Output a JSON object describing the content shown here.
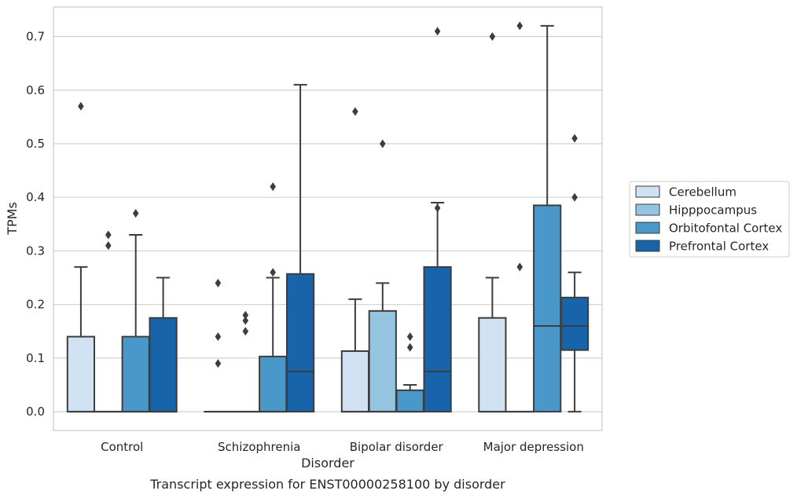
{
  "chart_data": {
    "type": "box",
    "caption": "Transcript expression for ENST00000258100 by disorder",
    "xlabel": "Disorder",
    "ylabel": "TPMs",
    "ylim": [
      -0.035,
      0.755
    ],
    "yticks": [
      0.0,
      0.1,
      0.2,
      0.3,
      0.4,
      0.5,
      0.6,
      0.7
    ],
    "ytick_labels": [
      "0.0",
      "0.1",
      "0.2",
      "0.3",
      "0.4",
      "0.5",
      "0.6",
      "0.7"
    ],
    "categories": [
      "Control",
      "Schizophrenia",
      "Bipolar disorder",
      "Major depression"
    ],
    "grid": true,
    "legend_position": "right",
    "series": [
      {
        "name": "Cerebellum",
        "color": "#d0e1f2",
        "boxes": [
          {
            "q1": 0.0,
            "median": 0.0,
            "q3": 0.14,
            "whisker_low": 0.0,
            "whisker_high": 0.27,
            "outliers": [
              0.57
            ]
          },
          {
            "q1": 0.0,
            "median": 0.0,
            "q3": 0.0,
            "whisker_low": 0.0,
            "whisker_high": 0.0,
            "outliers": [
              0.24,
              0.14,
              0.09
            ]
          },
          {
            "q1": 0.0,
            "median": 0.0,
            "q3": 0.113,
            "whisker_low": 0.0,
            "whisker_high": 0.21,
            "outliers": [
              0.56
            ]
          },
          {
            "q1": 0.0,
            "median": 0.0,
            "q3": 0.175,
            "whisker_low": 0.0,
            "whisker_high": 0.25,
            "outliers": [
              0.7
            ]
          }
        ]
      },
      {
        "name": "Hipppocampus",
        "color": "#94c4df",
        "boxes": [
          {
            "q1": 0.0,
            "median": 0.0,
            "q3": 0.0,
            "whisker_low": 0.0,
            "whisker_high": 0.0,
            "outliers": [
              0.33,
              0.31
            ]
          },
          {
            "q1": 0.0,
            "median": 0.0,
            "q3": 0.0,
            "whisker_low": 0.0,
            "whisker_high": 0.0,
            "outliers": [
              0.18,
              0.17,
              0.15
            ]
          },
          {
            "q1": 0.0,
            "median": 0.0,
            "q3": 0.188,
            "whisker_low": 0.0,
            "whisker_high": 0.24,
            "outliers": [
              0.5
            ]
          },
          {
            "q1": 0.0,
            "median": 0.0,
            "q3": 0.0,
            "whisker_low": 0.0,
            "whisker_high": 0.0,
            "outliers": [
              0.72,
              0.27
            ]
          }
        ]
      },
      {
        "name": "Orbitofontal Cortex",
        "color": "#4a98c9",
        "boxes": [
          {
            "q1": 0.0,
            "median": 0.0,
            "q3": 0.14,
            "whisker_low": 0.0,
            "whisker_high": 0.33,
            "outliers": [
              0.37
            ]
          },
          {
            "q1": 0.0,
            "median": 0.0,
            "q3": 0.103,
            "whisker_low": 0.0,
            "whisker_high": 0.25,
            "outliers": [
              0.42,
              0.26
            ]
          },
          {
            "q1": 0.0,
            "median": 0.0,
            "q3": 0.04,
            "whisker_low": 0.0,
            "whisker_high": 0.05,
            "outliers": [
              0.14,
              0.12
            ]
          },
          {
            "q1": 0.0,
            "median": 0.16,
            "q3": 0.385,
            "whisker_low": 0.0,
            "whisker_high": 0.72,
            "outliers": []
          }
        ]
      },
      {
        "name": "Prefrontal Cortex",
        "color": "#1764ab",
        "boxes": [
          {
            "q1": 0.0,
            "median": 0.0,
            "q3": 0.175,
            "whisker_low": 0.0,
            "whisker_high": 0.25,
            "outliers": []
          },
          {
            "q1": 0.0,
            "median": 0.075,
            "q3": 0.257,
            "whisker_low": 0.0,
            "whisker_high": 0.61,
            "outliers": []
          },
          {
            "q1": 0.0,
            "median": 0.075,
            "q3": 0.27,
            "whisker_low": 0.0,
            "whisker_high": 0.39,
            "outliers": [
              0.71,
              0.38
            ]
          },
          {
            "q1": 0.115,
            "median": 0.16,
            "q3": 0.213,
            "whisker_low": 0.0,
            "whisker_high": 0.26,
            "outliers": [
              0.51,
              0.4
            ]
          }
        ]
      }
    ]
  }
}
